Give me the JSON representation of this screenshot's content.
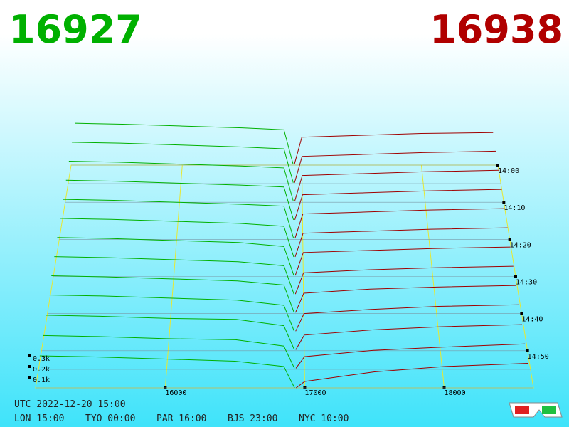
{
  "header": {
    "bid": 16927,
    "ask": 16938
  },
  "footer": {
    "utc": "UTC 2022-12-20 15:00",
    "clocks": [
      "LON 15:00",
      "TYO 00:00",
      "PAR 16:00",
      "BJS 23:00",
      "NYC 10:00"
    ]
  },
  "chart_data": {
    "type": "depth3d",
    "bid_color": "#00b000",
    "ask_color": "#a00000",
    "grid_color": "#e8e830",
    "xlim": [
      15070,
      18640
    ],
    "xticks": [
      16000,
      17000,
      18000
    ],
    "zticks": [
      {
        "value": 100,
        "label": "0.1k"
      },
      {
        "value": 200,
        "label": "0.2k"
      },
      {
        "value": 300,
        "label": "0.3k"
      }
    ],
    "bid_prices": [
      15100,
      15500,
      16000,
      16500,
      16850,
      16927
    ],
    "ask_prices": [
      16938,
      17000,
      17500,
      18000,
      18600
    ],
    "snapshots": [
      {
        "time": "14:00",
        "bids": [
          450,
          440,
          420,
          400,
          380,
          10
        ],
        "asks": [
          10,
          300,
          320,
          340,
          350
        ]
      },
      {
        "time": null,
        "bids": [
          440,
          430,
          410,
          390,
          370,
          10
        ],
        "asks": [
          10,
          290,
          310,
          330,
          345
        ]
      },
      {
        "time": "14:10",
        "bids": [
          430,
          420,
          400,
          380,
          360,
          10
        ],
        "asks": [
          10,
          280,
          300,
          320,
          335
        ]
      },
      {
        "time": null,
        "bids": [
          420,
          410,
          390,
          370,
          350,
          10
        ],
        "asks": [
          10,
          270,
          290,
          310,
          325
        ]
      },
      {
        "time": "14:20",
        "bids": [
          410,
          400,
          380,
          360,
          340,
          10
        ],
        "asks": [
          10,
          260,
          280,
          300,
          315
        ]
      },
      {
        "time": null,
        "bids": [
          400,
          390,
          370,
          350,
          320,
          10
        ],
        "asks": [
          10,
          250,
          270,
          290,
          305
        ]
      },
      {
        "time": "14:30",
        "bids": [
          390,
          380,
          360,
          340,
          300,
          10
        ],
        "asks": [
          10,
          240,
          260,
          280,
          295
        ]
      },
      {
        "time": null,
        "bids": [
          380,
          370,
          350,
          330,
          290,
          10
        ],
        "asks": [
          10,
          220,
          250,
          270,
          285
        ]
      },
      {
        "time": "14:40",
        "bids": [
          370,
          360,
          340,
          320,
          280,
          10
        ],
        "asks": [
          10,
          200,
          240,
          260,
          275
        ]
      },
      {
        "time": null,
        "bids": [
          360,
          350,
          330,
          310,
          260,
          10
        ],
        "asks": [
          10,
          180,
          220,
          250,
          265
        ]
      },
      {
        "time": "14:50",
        "bids": [
          340,
          330,
          310,
          300,
          240,
          10
        ],
        "asks": [
          10,
          150,
          200,
          230,
          250
        ]
      },
      {
        "time": null,
        "bids": [
          320,
          310,
          290,
          280,
          220,
          10
        ],
        "asks": [
          10,
          120,
          180,
          210,
          240
        ]
      },
      {
        "time": null,
        "bids": [
          300,
          290,
          270,
          250,
          200,
          0
        ],
        "asks": [
          0,
          60,
          150,
          200,
          230
        ]
      }
    ]
  }
}
